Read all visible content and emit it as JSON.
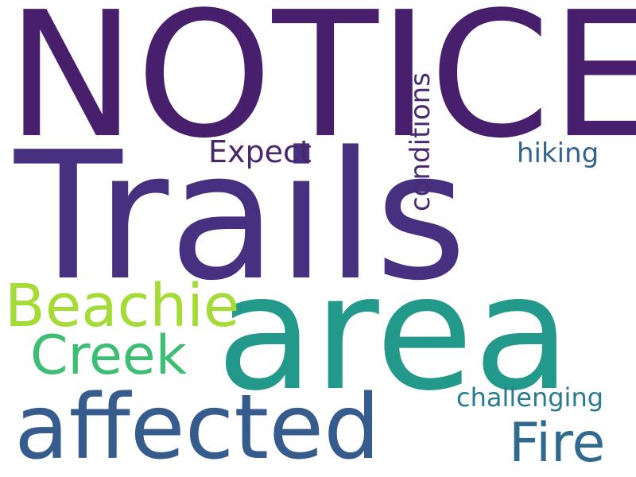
{
  "wordcloud": {
    "words": [
      {
        "key": "notice",
        "text": "NOTICE",
        "color": "#471f6d"
      },
      {
        "key": "trails",
        "text": "Trails",
        "color": "#473080"
      },
      {
        "key": "area",
        "text": "area",
        "color": "#23998b"
      },
      {
        "key": "affected",
        "text": "affected",
        "color": "#365b8d"
      },
      {
        "key": "beachie",
        "text": "Beachie",
        "color": "#a4db36"
      },
      {
        "key": "creek",
        "text": "Creek",
        "color": "#3ebe74"
      },
      {
        "key": "fire",
        "text": "Fire",
        "color": "#306b8e"
      },
      {
        "key": "expect",
        "text": "Expect",
        "color": "#482868"
      },
      {
        "key": "hiking",
        "text": "hiking",
        "color": "#34638c"
      },
      {
        "key": "conditions",
        "text": "conditions",
        "color": "#482a72"
      },
      {
        "key": "challenging",
        "text": "challenging",
        "color": "#297a8e"
      }
    ]
  }
}
